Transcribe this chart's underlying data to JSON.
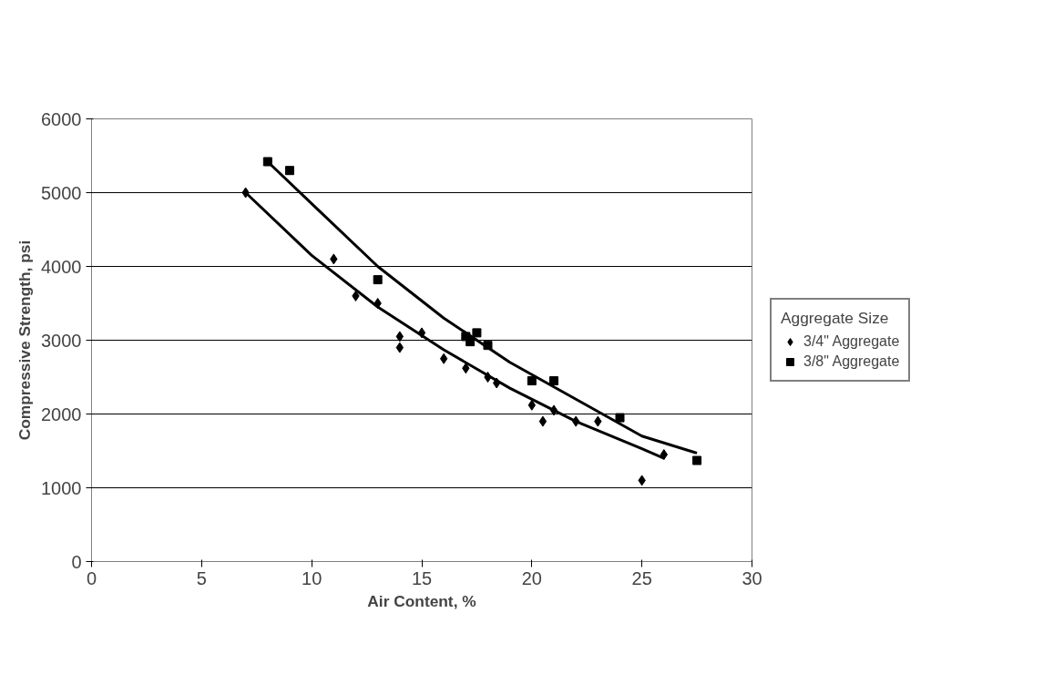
{
  "chart_data": {
    "type": "scatter",
    "xlabel": "Air Content, %",
    "ylabel": "Compressive Strength, psi",
    "legend_title": "Aggregate Size",
    "legend": "right",
    "grid": "y",
    "xlim": [
      0,
      30
    ],
    "xticks": [
      0,
      5,
      10,
      15,
      20,
      25,
      30
    ],
    "ylim": [
      0,
      6000
    ],
    "yticks": [
      0,
      1000,
      2000,
      3000,
      4000,
      5000,
      6000
    ],
    "series": [
      {
        "name": "3/4\" Aggregate",
        "marker": "diamond",
        "color": "#000000",
        "x": [
          7,
          11,
          12,
          13,
          14,
          14,
          15,
          16,
          17,
          18,
          18.4,
          20,
          20.5,
          21,
          22,
          23,
          25,
          26
        ],
        "values": [
          5000,
          4100,
          3600,
          3500,
          3050,
          2900,
          3100,
          2750,
          2620,
          2500,
          2420,
          2120,
          1900,
          2050,
          1900,
          1900,
          1100,
          1450
        ]
      },
      {
        "name": "3/8\" Aggregate",
        "marker": "square",
        "color": "#000000",
        "x": [
          8,
          9,
          13,
          17,
          17.2,
          17.5,
          18,
          20,
          21,
          24,
          27.5
        ],
        "values": [
          5420,
          5300,
          3820,
          3050,
          2980,
          3100,
          2930,
          2450,
          2450,
          1950,
          1370
        ]
      },
      {
        "type": "line",
        "color": "#000000",
        "x": [
          7,
          10,
          13,
          16,
          19,
          22,
          25,
          26
        ],
        "values": [
          5000,
          4150,
          3450,
          2870,
          2350,
          1900,
          1530,
          1400
        ]
      },
      {
        "type": "line",
        "color": "#000000",
        "x": [
          8,
          10,
          13,
          16,
          19,
          22,
          25,
          27.5
        ],
        "values": [
          5420,
          4850,
          4000,
          3300,
          2700,
          2200,
          1700,
          1470
        ]
      }
    ]
  }
}
